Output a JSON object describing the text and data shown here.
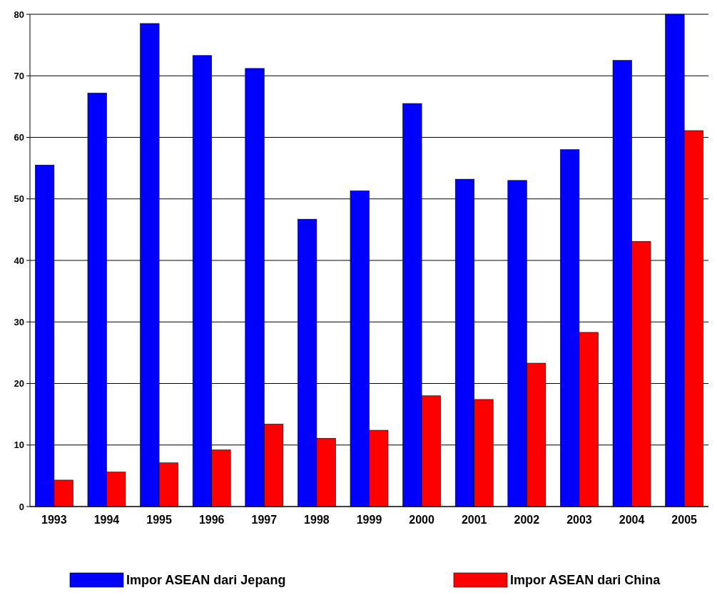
{
  "chart_data": {
    "type": "bar",
    "categories": [
      "1993",
      "1994",
      "1995",
      "1996",
      "1997",
      "1998",
      "1999",
      "2000",
      "2001",
      "2002",
      "2003",
      "2004",
      "2005"
    ],
    "series": [
      {
        "name": "Impor ASEAN dari Jepang",
        "color": "#0000ff",
        "values": [
          55.5,
          67.2,
          78.5,
          73.3,
          71.2,
          46.7,
          51.3,
          65.5,
          53.2,
          53,
          58,
          72.5,
          80
        ]
      },
      {
        "name": "Impor ASEAN dari China",
        "color": "#ff0000",
        "values": [
          4.3,
          5.6,
          7.1,
          9.2,
          13.4,
          11.1,
          12.4,
          18,
          17.4,
          23.3,
          28.3,
          43.1,
          61.1
        ]
      }
    ],
    "ylim": [
      0,
      80
    ],
    "yticks": [
      0,
      10,
      20,
      30,
      40,
      50,
      60,
      70,
      80
    ],
    "grid": "y",
    "legend": "bottom"
  }
}
